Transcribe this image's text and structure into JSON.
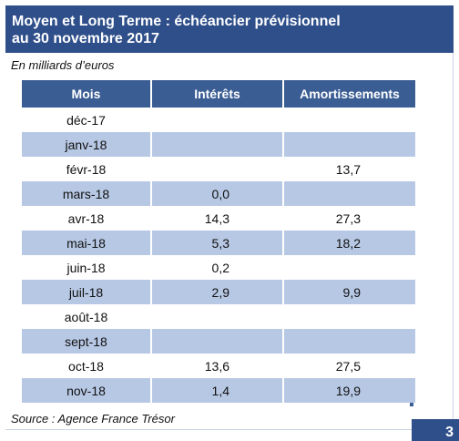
{
  "title_line1": "Moyen et Long Terme : échéancier prévisionnel",
  "title_line2": "au 30 novembre 2017",
  "unit": "En milliards d’euros",
  "columns": [
    "Mois",
    "Intérêts",
    "Amortissements"
  ],
  "rows": [
    {
      "mois": "déc-17",
      "interets": "",
      "amortissements": ""
    },
    {
      "mois": "janv-18",
      "interets": "",
      "amortissements": ""
    },
    {
      "mois": "févr-18",
      "interets": "",
      "amortissements": "13,7"
    },
    {
      "mois": "mars-18",
      "interets": "0,0",
      "amortissements": ""
    },
    {
      "mois": "avr-18",
      "interets": "14,3",
      "amortissements": "27,3"
    },
    {
      "mois": "mai-18",
      "interets": "5,3",
      "amortissements": "18,2"
    },
    {
      "mois": "juin-18",
      "interets": "0,2",
      "amortissements": ""
    },
    {
      "mois": "juil-18",
      "interets": "2,9",
      "amortissements": "9,9"
    },
    {
      "mois": "août-18",
      "interets": "",
      "amortissements": ""
    },
    {
      "mois": "sept-18",
      "interets": "",
      "amortissements": ""
    },
    {
      "mois": "oct-18",
      "interets": "13,6",
      "amortissements": "27,5"
    },
    {
      "mois": "nov-18",
      "interets": "1,4",
      "amortissements": "19,9"
    }
  ],
  "source": "Source : Agence France Trésor",
  "page_number": "3",
  "colors": {
    "header": "#3a5d94",
    "title_bar": "#2f4f8a",
    "shaded_row": "#b7c8e4"
  }
}
